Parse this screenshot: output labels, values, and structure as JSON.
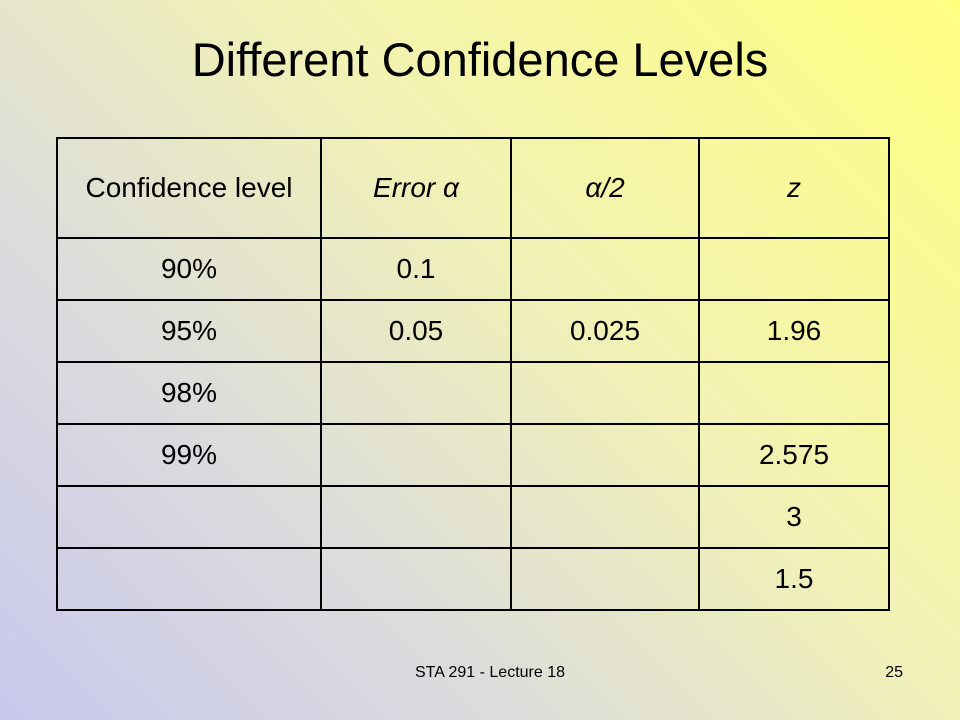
{
  "title": "Different Confidence Levels",
  "table": {
    "header": [
      "Confidence level",
      "Error α",
      "α/2",
      "z"
    ],
    "rows": [
      [
        "90%",
        "0.1",
        null,
        null
      ],
      [
        "95%",
        "0.05",
        "0.025",
        "1.96"
      ],
      [
        "98%",
        null,
        null,
        null
      ],
      [
        "99%",
        null,
        null,
        "2.575"
      ],
      [
        null,
        null,
        null,
        "3"
      ],
      [
        null,
        null,
        null,
        "1.5"
      ]
    ]
  },
  "footer": {
    "course": "STA 291 - Lecture 18",
    "page": "25"
  }
}
